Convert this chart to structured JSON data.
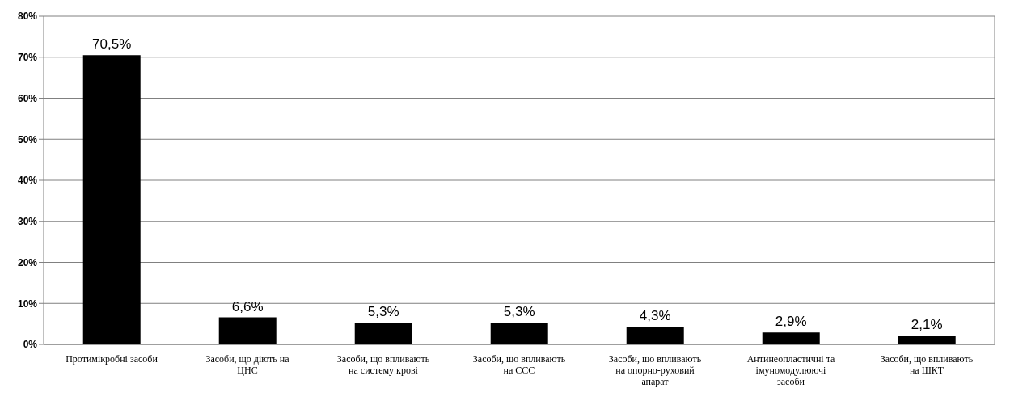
{
  "chart_data": {
    "type": "bar",
    "categories": [
      "Протимікробні засоби",
      "Засоби, що діють на ЦНС",
      "Засоби, що впливають на систему крові",
      "Засоби, що впливають на ССС",
      "Засоби, що впливають на опорно-руховий апарат",
      "Антинеопластичні та імуномодулюючі засоби",
      "Засоби, що впливають на ШКТ"
    ],
    "values": [
      70.5,
      6.6,
      5.3,
      5.3,
      4.3,
      2.9,
      2.1
    ],
    "value_labels": [
      "70,5%",
      "6,6%",
      "5,3%",
      "5,3%",
      "4,3%",
      "2,9%",
      "2,1%"
    ],
    "color": "#000000",
    "ylim": [
      0,
      80
    ],
    "yticks": [
      {
        "value": 0,
        "label": "0%"
      },
      {
        "value": 10,
        "label": "10%"
      },
      {
        "value": 20,
        "label": "20%"
      },
      {
        "value": 30,
        "label": "30%"
      },
      {
        "value": 40,
        "label": "40%"
      },
      {
        "value": 50,
        "label": "50%"
      },
      {
        "value": 60,
        "label": "60%"
      },
      {
        "value": 70,
        "label": "70%"
      },
      {
        "value": 80,
        "label": "80%"
      }
    ],
    "grid": "y",
    "legend": false
  }
}
